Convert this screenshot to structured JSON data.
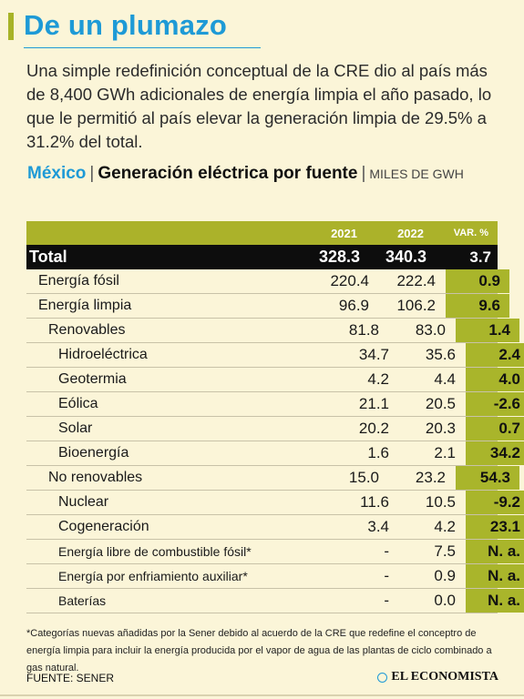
{
  "header": {
    "title": "De un plumazo",
    "subtitle": "Una simple redefinición conceptual de la CRE dio al país más de 8,400 GWh adicionales de energía limpia el año pasado, lo que le permitió al país elevar la generación limpia de 29.5% a 31.2% del total."
  },
  "chart_title": {
    "country": "México",
    "separator": "|",
    "main": "Generación eléctrica por fuente",
    "unit_sep": "|",
    "unit": "MILES DE GWH"
  },
  "colors": {
    "accent_blue": "#1e9ad6",
    "olive": "#a9b52b",
    "background": "#fbf5d8"
  },
  "chart_data": {
    "type": "table",
    "columns": [
      "",
      "2021",
      "2022",
      "VAR. %"
    ],
    "rows": [
      {
        "label": "Total",
        "y2021": "328.3",
        "y2022": "340.3",
        "var": "3.7",
        "level": 0
      },
      {
        "label": "Energía fósil",
        "y2021": "220.4",
        "y2022": "222.4",
        "var": "0.9",
        "level": 1
      },
      {
        "label": "Energía limpia",
        "y2021": "96.9",
        "y2022": "106.2",
        "var": "9.6",
        "level": 1
      },
      {
        "label": "Renovables",
        "y2021": "81.8",
        "y2022": "83.0",
        "var": "1.4",
        "level": 2
      },
      {
        "label": "Hidroeléctrica",
        "y2021": "34.7",
        "y2022": "35.6",
        "var": "2.4",
        "level": 3
      },
      {
        "label": "Geotermia",
        "y2021": "4.2",
        "y2022": "4.4",
        "var": "4.0",
        "level": 3
      },
      {
        "label": "Eólica",
        "y2021": "21.1",
        "y2022": "20.5",
        "var": "-2.6",
        "level": 3
      },
      {
        "label": "Solar",
        "y2021": "20.2",
        "y2022": "20.3",
        "var": "0.7",
        "level": 3
      },
      {
        "label": "Bioenergía",
        "y2021": "1.6",
        "y2022": "2.1",
        "var": "34.2",
        "level": 3
      },
      {
        "label": "No renovables",
        "y2021": "15.0",
        "y2022": "23.2",
        "var": "54.3",
        "level": 2
      },
      {
        "label": "Nuclear",
        "y2021": "11.6",
        "y2022": "10.5",
        "var": "-9.2",
        "level": 3
      },
      {
        "label": "Cogeneración",
        "y2021": "3.4",
        "y2022": "4.2",
        "var": "23.1",
        "level": 3
      },
      {
        "label": "Energía libre de combustible fósil*",
        "y2021": "-",
        "y2022": "7.5",
        "var": "N. a.",
        "level": 3,
        "small": true
      },
      {
        "label": "Energía por enfriamiento auxiliar*",
        "y2021": "-",
        "y2022": "0.9",
        "var": "N. a.",
        "level": 3,
        "small": true
      },
      {
        "label": "Baterías",
        "y2021": "-",
        "y2022": "0.0",
        "var": "N. a.",
        "level": 3,
        "small": true
      }
    ]
  },
  "footnote": "*Categorías nuevas añadidas por la Sener debido al acuerdo de la CRE que redefine el conceptro de energía limpia para incluir la energía producida por el vapor de agua de las plantas de ciclo combinado a gas natural.",
  "source": "FUENTE: SENER",
  "brand": {
    "name": "EL ECONOMISTA",
    "icon": "circle-logo-icon"
  }
}
